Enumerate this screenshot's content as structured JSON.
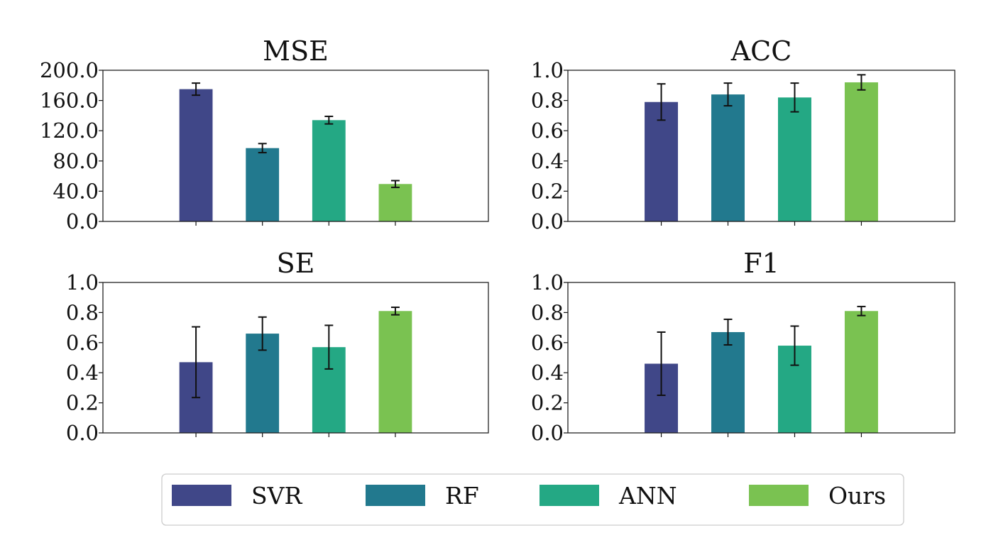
{
  "chart_data": [
    {
      "type": "bar",
      "title": "MSE",
      "categories": [
        "SVR",
        "RF",
        "ANN",
        "Ours"
      ],
      "values": [
        175,
        97,
        134,
        49.5
      ],
      "errors": [
        8,
        6,
        5,
        4.5
      ],
      "ylim": [
        0,
        200
      ],
      "yticks": [
        "0.0",
        "40.0",
        "80.0",
        "120.0",
        "160.0",
        "200.0"
      ],
      "ytick_values": [
        0,
        40,
        80,
        120,
        160,
        200
      ],
      "xlabel": "",
      "ylabel": ""
    },
    {
      "type": "bar",
      "title": "ACC",
      "categories": [
        "SVR",
        "RF",
        "ANN",
        "Ours"
      ],
      "values": [
        0.79,
        0.84,
        0.82,
        0.92
      ],
      "errors": [
        0.12,
        0.075,
        0.095,
        0.05
      ],
      "ylim": [
        0,
        1.0
      ],
      "yticks": [
        "0.0",
        "0.2",
        "0.4",
        "0.6",
        "0.8",
        "1.0"
      ],
      "ytick_values": [
        0,
        0.2,
        0.4,
        0.6,
        0.8,
        1.0
      ],
      "xlabel": "",
      "ylabel": ""
    },
    {
      "type": "bar",
      "title": "SE",
      "categories": [
        "SVR",
        "RF",
        "ANN",
        "Ours"
      ],
      "values": [
        0.47,
        0.66,
        0.57,
        0.81
      ],
      "errors": [
        0.235,
        0.11,
        0.145,
        0.025
      ],
      "ylim": [
        0,
        1.0
      ],
      "yticks": [
        "0.0",
        "0.2",
        "0.4",
        "0.6",
        "0.8",
        "1.0"
      ],
      "ytick_values": [
        0,
        0.2,
        0.4,
        0.6,
        0.8,
        1.0
      ],
      "xlabel": "",
      "ylabel": ""
    },
    {
      "type": "bar",
      "title": "F1",
      "categories": [
        "SVR",
        "RF",
        "ANN",
        "Ours"
      ],
      "values": [
        0.46,
        0.67,
        0.58,
        0.81
      ],
      "errors": [
        0.21,
        0.085,
        0.13,
        0.03
      ],
      "ylim": [
        0,
        1.0
      ],
      "yticks": [
        "0.0",
        "0.2",
        "0.4",
        "0.6",
        "0.8",
        "1.0"
      ],
      "ytick_values": [
        0,
        0.2,
        0.4,
        0.6,
        0.8,
        1.0
      ],
      "xlabel": "",
      "ylabel": ""
    }
  ],
  "legend": {
    "placement": "bottom-center",
    "entries": [
      {
        "label": "SVR",
        "color": "#404788"
      },
      {
        "label": "RF",
        "color": "#22798e"
      },
      {
        "label": "ANN",
        "color": "#24a884"
      },
      {
        "label": "Ours",
        "color": "#7ac251"
      }
    ]
  }
}
